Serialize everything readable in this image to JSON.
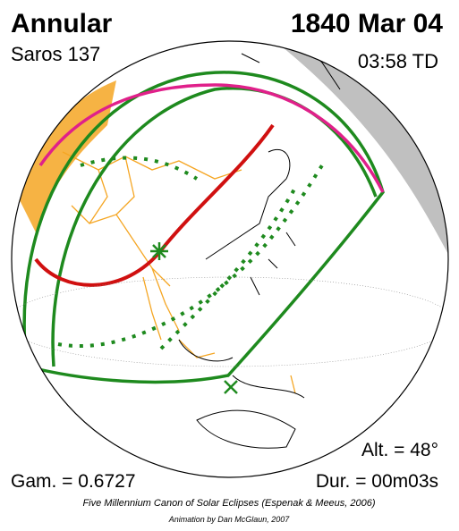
{
  "header": {
    "title": "Annular",
    "date": "1840 Mar 04",
    "saros": "Saros 137",
    "time": "03:58 TD"
  },
  "stats": {
    "altitude": "Alt. = 48°",
    "gamma": "Gam. = 0.6727",
    "duration": "Dur. = 00m03s"
  },
  "footer": {
    "credit": "Five Millennium Canon of Solar Eclipses (Espenak & Meeus, 2006)",
    "animation": "Animation by Dan McGlaun, 2007"
  }
}
